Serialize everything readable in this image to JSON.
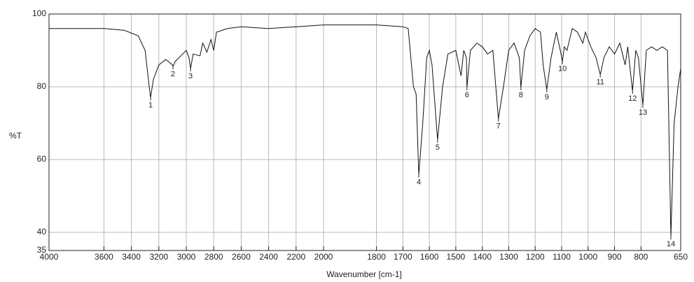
{
  "chart_data": {
    "type": "line",
    "ylabel": "%T",
    "xlabel": "Wavenumber [cm-1]",
    "xlim": [
      4000,
      650
    ],
    "ylim": [
      35,
      100
    ],
    "xticks": [
      4000,
      3600,
      3400,
      3200,
      3000,
      2800,
      2600,
      2400,
      2200,
      2000,
      1800,
      1700,
      1600,
      1500,
      1400,
      1300,
      1200,
      1100,
      1000,
      900,
      800,
      650
    ],
    "yticks": [
      35,
      40,
      60,
      80,
      100
    ],
    "grid": true,
    "series": [
      {
        "color": "#111111",
        "x": [
          4000,
          3800,
          3600,
          3450,
          3350,
          3300,
          3270,
          3260,
          3240,
          3200,
          3150,
          3100,
          3097,
          3080,
          3040,
          3000,
          2980,
          2969,
          2950,
          2900,
          2880,
          2850,
          2820,
          2800,
          2780,
          2700,
          2600,
          2400,
          2200,
          2000,
          1800,
          1700,
          1680,
          1660,
          1650,
          1640,
          1625,
          1610,
          1600,
          1590,
          1569,
          1550,
          1530,
          1500,
          1480,
          1470,
          1460,
          1458,
          1445,
          1420,
          1400,
          1380,
          1360,
          1339,
          1320,
          1300,
          1280,
          1260,
          1254,
          1240,
          1220,
          1200,
          1180,
          1170,
          1156,
          1140,
          1120,
          1105,
          1097,
          1090,
          1080,
          1060,
          1040,
          1020,
          1010,
          990,
          970,
          954,
          940,
          920,
          900,
          880,
          860,
          850,
          832,
          820,
          810,
          793,
          780,
          760,
          740,
          720,
          700,
          687,
          675,
          660,
          650
        ],
        "values": [
          96,
          96,
          96,
          95.5,
          94,
          90,
          80,
          77,
          82,
          86,
          87.5,
          86,
          85.6,
          87,
          88.5,
          90,
          88,
          85,
          89,
          88.5,
          92,
          89.5,
          93,
          90,
          95,
          96,
          96.5,
          96,
          96.5,
          97,
          97,
          96.5,
          96,
          80,
          78,
          55.8,
          70,
          88,
          90,
          86,
          65.4,
          80,
          89,
          90,
          83,
          90,
          88,
          79.8,
          90,
          92,
          91,
          89,
          90,
          71.2,
          80,
          90,
          92,
          88,
          79.8,
          90,
          94,
          96,
          95,
          86,
          79.2,
          88,
          95,
          90,
          87,
          91,
          90,
          96,
          95,
          92,
          95,
          91,
          88,
          83.3,
          88,
          91,
          89,
          92,
          86,
          91,
          78.8,
          90,
          88,
          75,
          90,
          91,
          90,
          91,
          90,
          38.8,
          70,
          80,
          85
        ]
      }
    ],
    "annotations": [
      {
        "text": "1",
        "x": 3260,
        "y": 77
      },
      {
        "text": "2",
        "x": 3097,
        "y": 85.6
      },
      {
        "text": "3",
        "x": 2969,
        "y": 85
      },
      {
        "text": "4",
        "x": 1640,
        "y": 55.8
      },
      {
        "text": "5",
        "x": 1569,
        "y": 65.4
      },
      {
        "text": "6",
        "x": 1458,
        "y": 79.8
      },
      {
        "text": "7",
        "x": 1339,
        "y": 71.2
      },
      {
        "text": "8",
        "x": 1254,
        "y": 79.8
      },
      {
        "text": "9",
        "x": 1156,
        "y": 79.2
      },
      {
        "text": "10",
        "x": 1097,
        "y": 87
      },
      {
        "text": "11",
        "x": 954,
        "y": 83.3
      },
      {
        "text": "12",
        "x": 832,
        "y": 78.8
      },
      {
        "text": "13",
        "x": 793,
        "y": 75
      },
      {
        "text": "14",
        "x": 687,
        "y": 38.8
      }
    ]
  }
}
